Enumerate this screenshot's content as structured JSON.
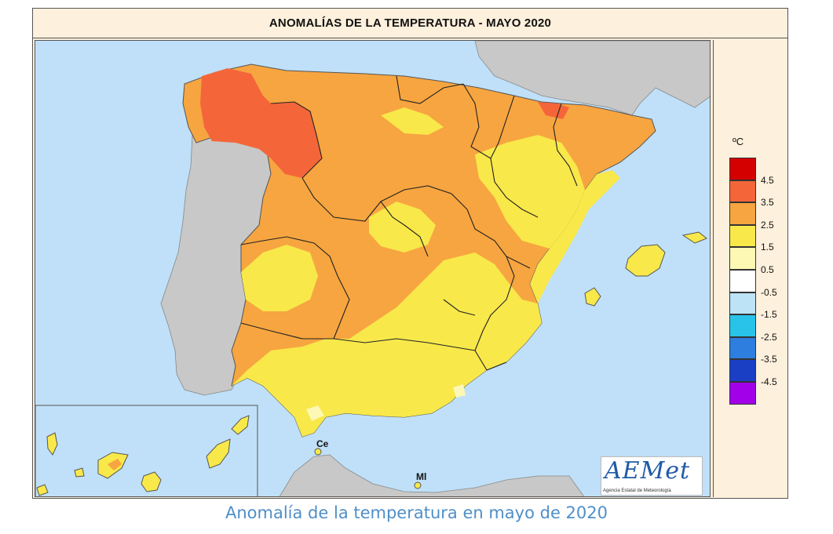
{
  "title": "ANOMALÍAS DE LA TEMPERATURA - MAYO 2020",
  "caption": "Anomalía de la temperatura en mayo de 2020",
  "legend": {
    "unit": "ºC",
    "colors": [
      "#d40000",
      "#f4663a",
      "#f7a540",
      "#f8e84a",
      "#fdf8b4",
      "#ffffff",
      "#bde3f6",
      "#29c3ea",
      "#2e7ee0",
      "#1a3fc4",
      "#a100e8"
    ],
    "ticks": [
      "4.5",
      "3.5",
      "2.5",
      "1.5",
      "0.5",
      "-0.5",
      "-1.5",
      "-2.5",
      "-3.5",
      "-4.5"
    ]
  },
  "labels": {
    "ceuta": "Ce",
    "melilla": "Ml"
  },
  "logo": {
    "text": "AEMet",
    "subtitle": "Agencia Estatal de Meteorología"
  },
  "colors": {
    "sea": "#bfe0f8",
    "land_outside": "#c8c8c8",
    "anomaly_3_5": "#f4663a",
    "anomaly_2_5": "#f7a540",
    "anomaly_1_5": "#f8e84a",
    "anomaly_0_5": "#fdf8b4"
  }
}
